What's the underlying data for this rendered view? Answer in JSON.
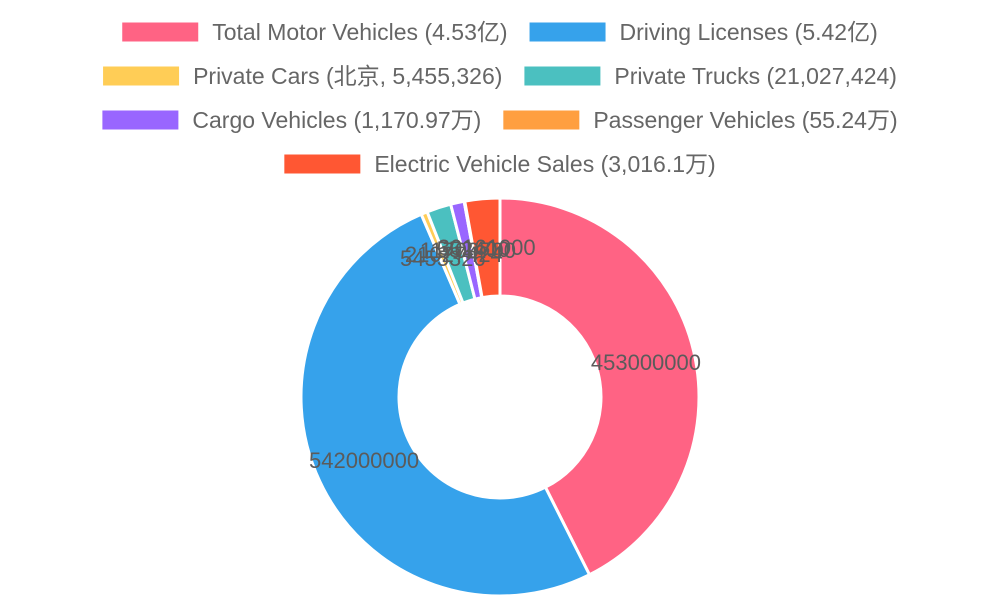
{
  "chart_data": {
    "type": "pie",
    "variant": "doughnut",
    "legend_position": "top",
    "legend": [
      "Total Motor Vehicles (4.53亿)",
      "Driving Licenses (5.42亿)",
      "Private Cars (北京, 5,455,326)",
      "Private Trucks (21,027,424)",
      "Cargo Vehicles (1,170.97万)",
      "Passenger Vehicles (55.24万)",
      "Electric Vehicle Sales (3,016.1万)"
    ],
    "slices": [
      {
        "label": "Total Motor Vehicles (4.53亿)",
        "value": 453000000,
        "color": "#ff6384"
      },
      {
        "label": "Driving Licenses (5.42亿)",
        "value": 542000000,
        "color": "#36a2eb"
      },
      {
        "label": "Private Cars (北京, 5,455,326)",
        "value": 5455326,
        "color": "#ffcd56"
      },
      {
        "label": "Private Trucks (21,027,424)",
        "value": 21027424,
        "color": "#4bc0c0"
      },
      {
        "label": "Cargo Vehicles (1,170.97万)",
        "value": 11709700,
        "color": "#9966ff"
      },
      {
        "label": "Passenger Vehicles (55.24万)",
        "value": 552400,
        "color": "#ff9f40"
      },
      {
        "label": "Electric Vehicle Sales (3,016.1万)",
        "value": 30161000,
        "color": "#ff5733"
      }
    ],
    "data_labels": [
      "453000000",
      "542000000",
      "5455326",
      "21027424",
      "11709700",
      "552400",
      "30161000"
    ]
  }
}
